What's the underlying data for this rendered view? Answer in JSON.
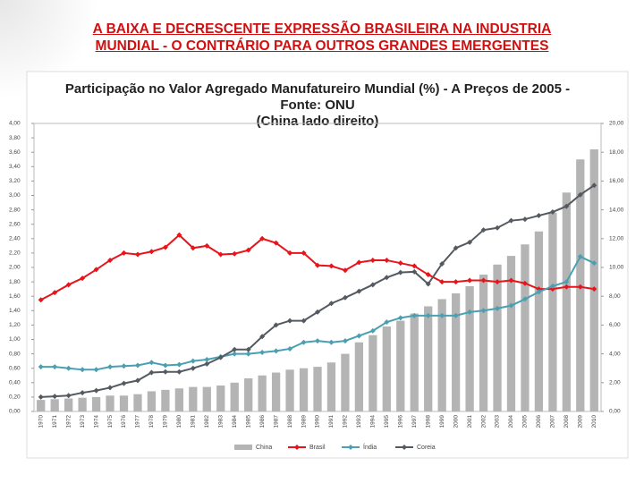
{
  "slide_title": [
    "A BAIXA E DECRESCENTE EXPRESSÃO BRASILEIRA  NA INDUSTRIA",
    "MUNDIAL  -  O CONTRÁRIO  PARA OUTROS GRANDES EMERGENTES"
  ],
  "chart_data": {
    "type": "bar-line",
    "title": "Participação no Valor Agregado Manufatureiro Mundial (%) -  A Preços de 2005 -",
    "subtitle": "Fonte: ONU",
    "note": "(China lado direito)",
    "categories": [
      "1970",
      "1971",
      "1972",
      "1973",
      "1974",
      "1975",
      "1976",
      "1977",
      "1978",
      "1979",
      "1980",
      "1981",
      "1982",
      "1983",
      "1984",
      "1985",
      "1986",
      "1987",
      "1988",
      "1989",
      "1990",
      "1991",
      "1992",
      "1993",
      "1994",
      "1995",
      "1996",
      "1997",
      "1998",
      "1999",
      "2000",
      "2001",
      "2002",
      "2003",
      "2004",
      "2005",
      "2006",
      "2007",
      "2008",
      "2009",
      "2010"
    ],
    "series": [
      {
        "name": "China",
        "type": "bar",
        "axis": "y2",
        "color": "#b4b4b4",
        "values": [
          0.8,
          0.85,
          0.9,
          0.95,
          1.0,
          1.1,
          1.1,
          1.2,
          1.4,
          1.5,
          1.6,
          1.7,
          1.7,
          1.8,
          2.0,
          2.3,
          2.5,
          2.7,
          2.9,
          3.0,
          3.1,
          3.4,
          4.0,
          4.8,
          5.3,
          5.9,
          6.3,
          6.8,
          7.3,
          7.8,
          8.2,
          8.7,
          9.5,
          10.2,
          10.8,
          11.6,
          12.5,
          13.8,
          15.2,
          17.5,
          18.2
        ]
      },
      {
        "name": "Brasil",
        "type": "line",
        "color": "#e8141b",
        "values": [
          1.55,
          1.65,
          1.76,
          1.85,
          1.97,
          2.1,
          2.2,
          2.18,
          2.22,
          2.28,
          2.45,
          2.27,
          2.3,
          2.18,
          2.19,
          2.24,
          2.4,
          2.34,
          2.2,
          2.2,
          2.03,
          2.02,
          1.96,
          2.07,
          2.1,
          2.1,
          2.06,
          2.02,
          1.9,
          1.8,
          1.8,
          1.82,
          1.82,
          1.8,
          1.82,
          1.78,
          1.7,
          1.7,
          1.73,
          1.73,
          1.7
        ]
      },
      {
        "name": "Índia",
        "type": "line",
        "color": "#4aa0b0",
        "values": [
          0.62,
          0.62,
          0.6,
          0.58,
          0.58,
          0.62,
          0.63,
          0.64,
          0.68,
          0.64,
          0.65,
          0.7,
          0.72,
          0.76,
          0.8,
          0.8,
          0.82,
          0.84,
          0.87,
          0.96,
          0.98,
          0.96,
          0.98,
          1.05,
          1.12,
          1.24,
          1.3,
          1.33,
          1.33,
          1.33,
          1.33,
          1.38,
          1.4,
          1.43,
          1.47,
          1.56,
          1.66,
          1.74,
          1.8,
          2.15,
          2.06
        ]
      },
      {
        "name": "Coreia",
        "type": "line",
        "color": "#555a60",
        "values": [
          0.2,
          0.21,
          0.22,
          0.26,
          0.29,
          0.33,
          0.39,
          0.43,
          0.54,
          0.55,
          0.55,
          0.6,
          0.66,
          0.75,
          0.86,
          0.86,
          1.04,
          1.2,
          1.26,
          1.26,
          1.38,
          1.5,
          1.58,
          1.67,
          1.76,
          1.86,
          1.93,
          1.94,
          1.77,
          2.05,
          2.27,
          2.35,
          2.52,
          2.55,
          2.65,
          2.67,
          2.72,
          2.77,
          2.85,
          3.01,
          3.14
        ]
      }
    ],
    "ylim": [
      0,
      4
    ],
    "yticks": [
      {
        "value": 0,
        "label": "0,00"
      },
      {
        "value": 0.2,
        "label": "0,20"
      },
      {
        "value": 0.4,
        "label": "0,40"
      },
      {
        "value": 0.6,
        "label": "0,60"
      },
      {
        "value": 0.8,
        "label": "0,80"
      },
      {
        "value": 1,
        "label": "1,00"
      },
      {
        "value": 1.2,
        "label": "1,20"
      },
      {
        "value": 1.4,
        "label": "1,40"
      },
      {
        "value": 1.6,
        "label": "1,60"
      },
      {
        "value": 1.8,
        "label": "1,80"
      },
      {
        "value": 2,
        "label": "2,00"
      },
      {
        "value": 2.2,
        "label": "2,20"
      },
      {
        "value": 2.4,
        "label": "2,40"
      },
      {
        "value": 2.6,
        "label": "2,60"
      },
      {
        "value": 2.8,
        "label": "2,80"
      },
      {
        "value": 3,
        "label": "3,00"
      },
      {
        "value": 3.2,
        "label": "3,20"
      },
      {
        "value": 3.4,
        "label": "3,40"
      },
      {
        "value": 3.6,
        "label": "3,60"
      },
      {
        "value": 3.8,
        "label": "3,80"
      },
      {
        "value": 4,
        "label": "4,00"
      }
    ],
    "y2lim": [
      0,
      20
    ],
    "y2ticks": [
      {
        "value": 0,
        "label": "0,00"
      },
      {
        "value": 2,
        "label": "2,00"
      },
      {
        "value": 4,
        "label": "4,00"
      },
      {
        "value": 6,
        "label": "6,00"
      },
      {
        "value": 8,
        "label": "8,00"
      },
      {
        "value": 10,
        "label": "10,00"
      },
      {
        "value": 12,
        "label": "12,00"
      },
      {
        "value": 14,
        "label": "14,00"
      },
      {
        "value": 16,
        "label": "16,00"
      },
      {
        "value": 18,
        "label": "18,00"
      },
      {
        "value": 20,
        "label": "20,00"
      }
    ],
    "legend": "bottom"
  }
}
